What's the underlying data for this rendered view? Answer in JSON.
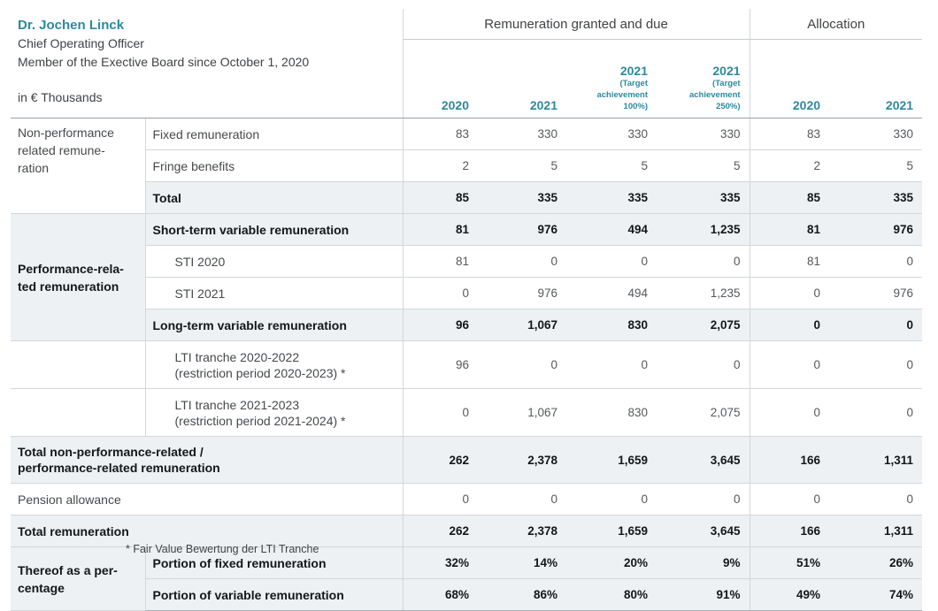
{
  "header": {
    "name": "Dr. Jochen Linck",
    "title": "Chief Operating Officer",
    "tenure": "Member of the Exective Board since October 1, 2020",
    "unit_label": "in € Thousands",
    "group1_title": "Remuneration granted and due",
    "group2_title": "Allocation",
    "columns": [
      {
        "year": "2020",
        "sub": ""
      },
      {
        "year": "2021",
        "sub": ""
      },
      {
        "year": "2021",
        "sub": "(Target\nachievement\n100%)"
      },
      {
        "year": "2021",
        "sub": "(Target\nachievement\n250%)"
      },
      {
        "year": "2020",
        "sub": ""
      },
      {
        "year": "2021",
        "sub": ""
      }
    ]
  },
  "table": {
    "rows": [
      {
        "group": "Non-performance\nrelated remune-\nration",
        "label": "Fixed remuneration",
        "values": [
          "83",
          "330",
          "330",
          "330",
          "83",
          "330"
        ]
      },
      {
        "label": "Fringe benefits",
        "values": [
          "2",
          "5",
          "5",
          "5",
          "2",
          "5"
        ]
      },
      {
        "label": "Total",
        "values": [
          "85",
          "335",
          "335",
          "335",
          "85",
          "335"
        ]
      },
      {
        "group": "Performance-rela-\nted remuneration",
        "label": "Short-term variable remuneration",
        "values": [
          "81",
          "976",
          "494",
          "1,235",
          "81",
          "976"
        ]
      },
      {
        "label": "STI 2020",
        "values": [
          "81",
          "0",
          "0",
          "0",
          "81",
          "0"
        ]
      },
      {
        "label": "STI 2021",
        "values": [
          "0",
          "976",
          "494",
          "1,235",
          "0",
          "976"
        ]
      },
      {
        "label": "Long-term variable remuneration",
        "values": [
          "96",
          "1,067",
          "830",
          "2,075",
          "0",
          "0"
        ]
      },
      {
        "group": "",
        "label": "LTI tranche 2020-2022\n(restriction period 2020-2023) *",
        "values": [
          "96",
          "0",
          "0",
          "0",
          "0",
          "0"
        ]
      },
      {
        "group": "",
        "label": "LTI tranche 2021-2023\n(restriction period 2021-2024) *",
        "values": [
          "0",
          "1,067",
          "830",
          "2,075",
          "0",
          "0"
        ]
      },
      {
        "label": "Total non-performance-related /\nperformance-related remuneration",
        "values": [
          "262",
          "2,378",
          "1,659",
          "3,645",
          "166",
          "1,311"
        ]
      },
      {
        "label": "Pension allowance",
        "values": [
          "0",
          "0",
          "0",
          "0",
          "0",
          "0"
        ]
      },
      {
        "label": "Total remuneration",
        "values": [
          "262",
          "2,378",
          "1,659",
          "3,645",
          "166",
          "1,311"
        ]
      },
      {
        "group": "Thereof as a per-\ncentage",
        "label": "Portion of fixed remuneration",
        "values": [
          "32%",
          "14%",
          "20%",
          "9%",
          "51%",
          "26%"
        ]
      },
      {
        "label": "Portion of variable remuneration",
        "values": [
          "68%",
          "86%",
          "80%",
          "91%",
          "49%",
          "74%"
        ]
      }
    ]
  },
  "footnote": "* Fair Value Bewertung der LTI Tranche",
  "colors": {
    "accent": "#2b8a9e",
    "row_shade": "#eef1f4"
  }
}
